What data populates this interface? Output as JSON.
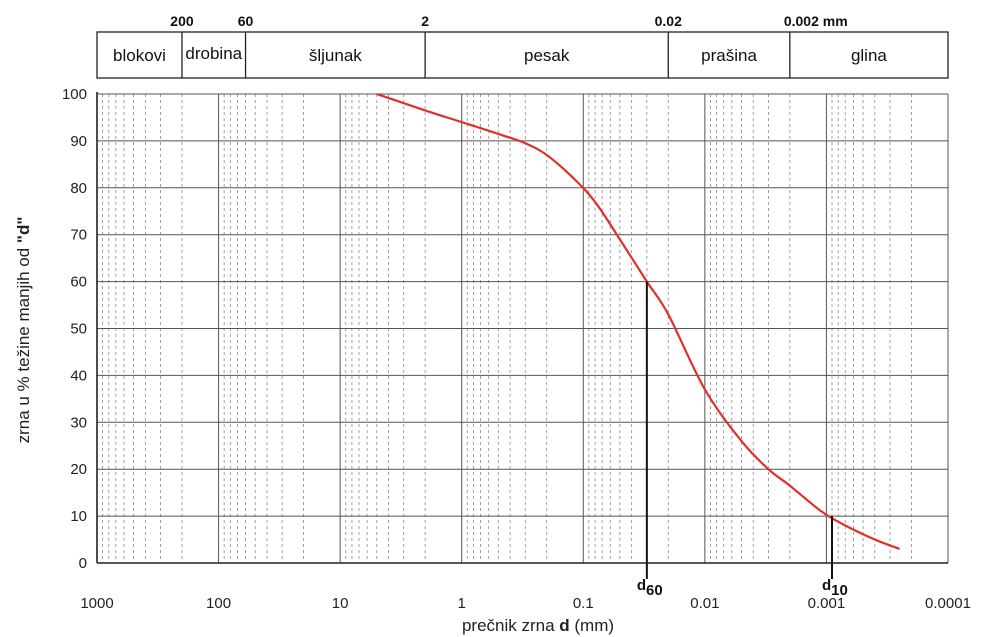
{
  "chart_data": {
    "type": "line",
    "xscale": "log",
    "xaxis_reversed": true,
    "xlim": [
      1000,
      0.0001
    ],
    "ylim": [
      0,
      100
    ],
    "x_ticks": [
      "1000",
      "100",
      "10",
      "1",
      "0.1",
      "0.01",
      "0.001",
      "0.0001"
    ],
    "y_ticks": [
      "100",
      "90",
      "80",
      "70",
      "60",
      "50",
      "40",
      "30",
      "20",
      "10",
      "0"
    ],
    "xlabel": {
      "prefix": "prečnik zrna ",
      "bold": "d",
      "suffix": " (mm)"
    },
    "ylabel": {
      "prefix": "zrna u % težine manjih od ",
      "bold": "\"d\""
    },
    "grid": true,
    "series": [
      {
        "color": "#e0302a",
        "x": [
          5,
          2,
          1,
          0.5,
          0.3,
          0.2,
          0.12,
          0.08,
          0.05,
          0.03,
          0.02,
          0.01,
          0.005,
          0.003,
          0.002,
          0.0011,
          0.0007,
          0.0004,
          0.00025
        ],
        "y": [
          100,
          96.5,
          94,
          91.5,
          89.5,
          87,
          82,
          77,
          69,
          60,
          53,
          37,
          26,
          20,
          16.5,
          11,
          8,
          5,
          3
        ]
      }
    ],
    "markers": [
      {
        "name": "d60",
        "label_main": "d",
        "label_sub": "60",
        "x": 0.03,
        "y": 60
      },
      {
        "name": "d10",
        "label_main": "d",
        "label_sub": "10",
        "x": 0.0009,
        "y": 10
      }
    ],
    "fractions": [
      {
        "label": "blokovi",
        "from": 1000,
        "to": 200
      },
      {
        "label": "drobina",
        "from": 200,
        "to": 60
      },
      {
        "label": "šljunak",
        "from": 60,
        "to": 2
      },
      {
        "label": "pesak",
        "from": 2,
        "to": 0.02
      },
      {
        "label": "prašina",
        "from": 0.02,
        "to": 0.002
      },
      {
        "label": "glina",
        "from": 0.002,
        "to": 0.0001
      }
    ],
    "boundary_labels": [
      {
        "text": "200",
        "x": 200
      },
      {
        "text": "60",
        "x": 60
      },
      {
        "text": "2",
        "x": 2
      },
      {
        "text": "0.02",
        "x": 0.02
      },
      {
        "text": "0.002 mm",
        "x": 0.002
      }
    ]
  }
}
